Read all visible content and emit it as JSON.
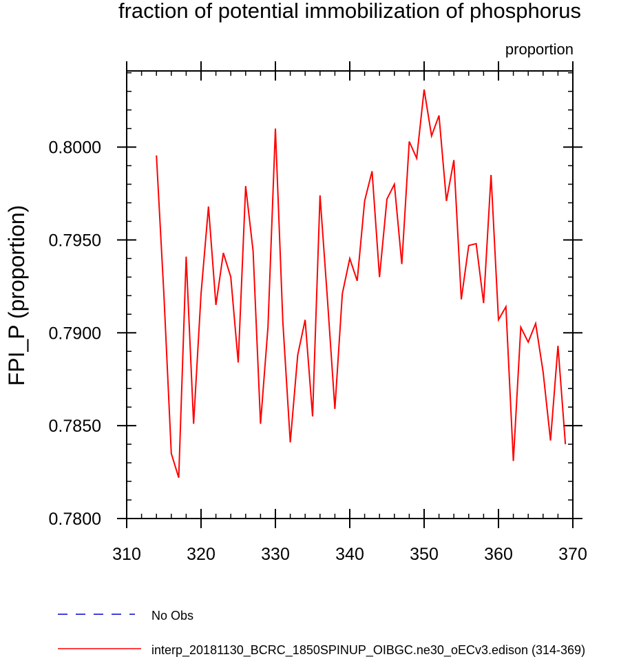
{
  "chart_data": {
    "type": "line",
    "title": "fraction of potential immobilization of phosphorus",
    "units_label": "proportion",
    "xlabel": "",
    "ylabel": "FPI_P  (proportion)",
    "xlim": [
      310,
      370
    ],
    "ylim": [
      0.78,
      0.8041
    ],
    "xticks": [
      310,
      320,
      330,
      340,
      350,
      360,
      370
    ],
    "xtick_labels": [
      "310",
      "320",
      "330",
      "340",
      "350",
      "360",
      "370"
    ],
    "yticks": [
      0.78,
      0.785,
      0.79,
      0.795,
      0.8
    ],
    "ytick_labels": [
      "0.7800",
      "0.7850",
      "0.7900",
      "0.7950",
      "0.8000"
    ],
    "x_minor_step": 2,
    "y_minor_step": 0.001,
    "series": [
      {
        "name": "interp_20181130_BCRC_1850SPINUP_OIBGC.ne30_oECv3.edison (314-369)",
        "color": "#ff0000",
        "style": "solid",
        "x": [
          314,
          315,
          316,
          317,
          318,
          319,
          320,
          321,
          322,
          323,
          324,
          325,
          326,
          327,
          328,
          329,
          330,
          331,
          332,
          333,
          334,
          335,
          336,
          337,
          338,
          339,
          340,
          341,
          342,
          343,
          344,
          345,
          346,
          347,
          348,
          349,
          350,
          351,
          352,
          353,
          354,
          355,
          356,
          357,
          358,
          359,
          360,
          361,
          362,
          363,
          364,
          365,
          366,
          367,
          368,
          369
        ],
        "values": [
          0.79955,
          0.7921,
          0.7835,
          0.7822,
          0.7941,
          0.7851,
          0.7921,
          0.7968,
          0.7915,
          0.7943,
          0.793,
          0.7884,
          0.7979,
          0.7944,
          0.7851,
          0.7903,
          0.801,
          0.7906,
          0.7841,
          0.7888,
          0.7907,
          0.7855,
          0.7974,
          0.7918,
          0.7859,
          0.7921,
          0.794,
          0.7928,
          0.7971,
          0.7987,
          0.793,
          0.7972,
          0.798,
          0.7937,
          0.8003,
          0.7994,
          0.8031,
          0.8006,
          0.8017,
          0.7971,
          0.7993,
          0.7918,
          0.7947,
          0.7948,
          0.7916,
          0.7985,
          0.7907,
          0.7914,
          0.7831,
          0.7903,
          0.7895,
          0.7905,
          0.7879,
          0.7842,
          0.7893,
          0.784
        ]
      }
    ],
    "legend": [
      {
        "label": "No Obs",
        "color": "#0000cc",
        "style": "dashed"
      },
      {
        "label": "interp_20181130_BCRC_1850SPINUP_OIBGC.ne30_oECv3.edison (314-369)",
        "color": "#ff0000",
        "style": "solid"
      }
    ],
    "legend_position": "bottom-left"
  }
}
